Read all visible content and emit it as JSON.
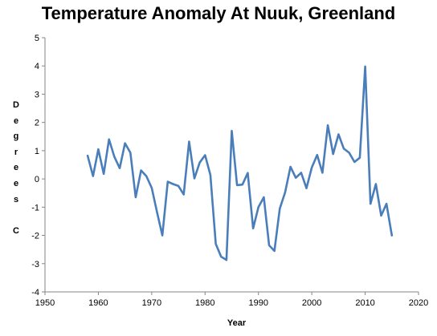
{
  "chart_data": {
    "type": "line",
    "title": "Temperature Anomaly At Nuuk, Greenland",
    "xlabel": "Year",
    "ylabel": "Degrees C",
    "xlim": [
      1950,
      2020
    ],
    "ylim": [
      -4,
      5
    ],
    "xticks": [
      "1950",
      "1960",
      "1970",
      "1980",
      "1990",
      "2000",
      "2010",
      "2020"
    ],
    "yticks": [
      "-4",
      "-3",
      "-2",
      "-1",
      "0",
      "1",
      "2",
      "3",
      "4",
      "5"
    ],
    "grid": false,
    "legend": "none",
    "line_color": "#4A7EBB",
    "series": [
      {
        "x": [
          1958,
          1959,
          1960,
          1961,
          1962,
          1963,
          1964,
          1965,
          1966,
          1967,
          1968,
          1969,
          1970,
          1971,
          1972,
          1973,
          1974,
          1975,
          1976,
          1977,
          1978,
          1979,
          1980,
          1981,
          1982,
          1983,
          1984,
          1985,
          1986,
          1987,
          1988,
          1989,
          1990,
          1991,
          1992,
          1993,
          1994,
          1995,
          1996,
          1997,
          1998,
          1999,
          2000,
          2001,
          2002,
          2003,
          2004,
          2005,
          2006,
          2007,
          2008,
          2009,
          2010,
          2011,
          2012,
          2013,
          2014,
          2015
        ],
        "values": [
          0.82,
          0.1,
          1.05,
          0.18,
          1.4,
          0.78,
          0.38,
          1.26,
          0.93,
          -0.65,
          0.3,
          0.1,
          -0.32,
          -1.18,
          -2.0,
          -0.1,
          -0.18,
          -0.25,
          -0.55,
          1.32,
          0.02,
          0.58,
          0.84,
          0.14,
          -2.3,
          -2.75,
          -2.87,
          1.7,
          -0.22,
          -0.2,
          0.21,
          -1.75,
          -1.0,
          -0.65,
          -2.35,
          -2.55,
          -1.05,
          -0.48,
          0.43,
          0.04,
          0.22,
          -0.33,
          0.4,
          0.85,
          0.22,
          1.9,
          0.88,
          1.58,
          1.07,
          0.93,
          0.6,
          0.75,
          3.98,
          -0.88,
          -0.18,
          -1.3,
          -0.88,
          -2.0
        ]
      }
    ]
  }
}
